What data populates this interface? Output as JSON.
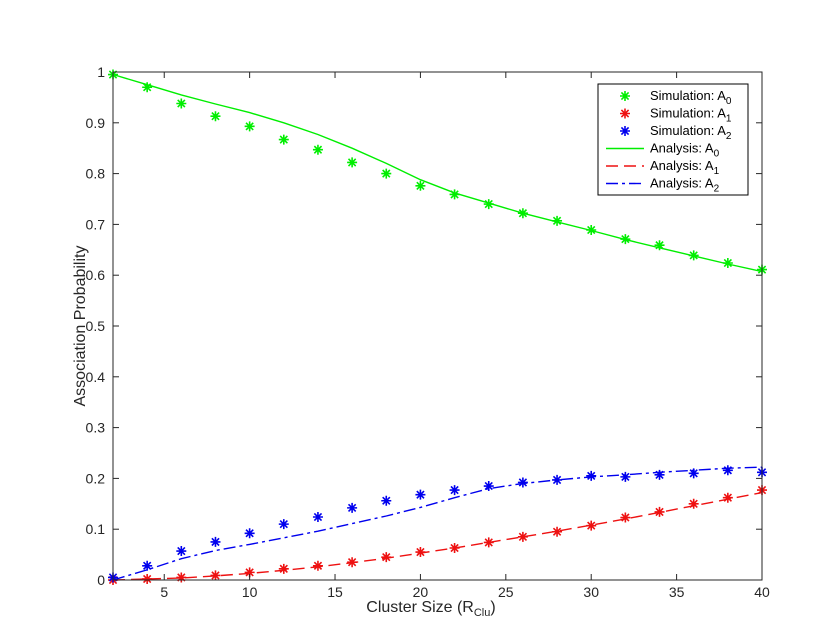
{
  "chart_data": {
    "type": "line",
    "xlabel": "Cluster Size (R",
    "xlabel_sub": "Clu",
    "xlabel_end": ")",
    "ylabel": "Association Probability",
    "xlim": [
      2,
      40
    ],
    "ylim": [
      0,
      1
    ],
    "x_ticks": [
      5,
      10,
      15,
      20,
      25,
      30,
      35,
      40
    ],
    "y_ticks": [
      0,
      0.1,
      0.2,
      0.3,
      0.4,
      0.5,
      0.6,
      0.7,
      0.8,
      0.9,
      1
    ],
    "x_tick_labels": [
      "5",
      "10",
      "15",
      "20",
      "25",
      "30",
      "35",
      "40"
    ],
    "y_tick_labels": [
      "0",
      "0.1",
      "0.2",
      "0.3",
      "0.4",
      "0.5",
      "0.6",
      "0.7",
      "0.8",
      "0.9",
      "1"
    ],
    "grid": false,
    "legend_position": "top-right",
    "x": [
      2,
      4,
      6,
      8,
      10,
      12,
      14,
      16,
      18,
      20,
      22,
      24,
      26,
      28,
      30,
      32,
      34,
      36,
      38,
      40
    ],
    "series": [
      {
        "name": "Simulation: A",
        "sub": "0",
        "kind": "markers",
        "color": "#00ee00",
        "values": [
          0.995,
          0.97,
          0.938,
          0.913,
          0.893,
          0.867,
          0.847,
          0.822,
          0.8,
          0.776,
          0.759,
          0.74,
          0.722,
          0.707,
          0.689,
          0.671,
          0.659,
          0.639,
          0.624,
          0.611
        ]
      },
      {
        "name": "Simulation: A",
        "sub": "1",
        "kind": "markers",
        "color": "#ee1111",
        "values": [
          0.0,
          0.002,
          0.005,
          0.009,
          0.015,
          0.022,
          0.028,
          0.035,
          0.045,
          0.055,
          0.063,
          0.074,
          0.085,
          0.095,
          0.107,
          0.123,
          0.134,
          0.15,
          0.162,
          0.177
        ]
      },
      {
        "name": "Simulation: A",
        "sub": "2",
        "kind": "markers",
        "color": "#0000ee",
        "values": [
          0.005,
          0.028,
          0.057,
          0.075,
          0.092,
          0.11,
          0.124,
          0.142,
          0.156,
          0.168,
          0.177,
          0.185,
          0.192,
          0.197,
          0.205,
          0.203,
          0.207,
          0.21,
          0.216,
          0.212
        ]
      },
      {
        "name": "Analysis: A",
        "sub": "0",
        "kind": "line",
        "dash": "solid",
        "color": "#00ee00",
        "values": [
          0.995,
          0.975,
          0.955,
          0.937,
          0.92,
          0.9,
          0.877,
          0.85,
          0.82,
          0.788,
          0.762,
          0.742,
          0.722,
          0.705,
          0.688,
          0.67,
          0.654,
          0.638,
          0.622,
          0.607
        ]
      },
      {
        "name": "Analysis: A",
        "sub": "1",
        "kind": "line",
        "dash": "dashed",
        "color": "#ee1111",
        "values": [
          0.0,
          0.002,
          0.004,
          0.008,
          0.013,
          0.019,
          0.026,
          0.034,
          0.043,
          0.053,
          0.063,
          0.074,
          0.085,
          0.096,
          0.108,
          0.12,
          0.133,
          0.146,
          0.159,
          0.172
        ]
      },
      {
        "name": "Analysis: A",
        "sub": "2",
        "kind": "line",
        "dash": "dashdot",
        "color": "#0000ee",
        "values": [
          0.0,
          0.02,
          0.042,
          0.058,
          0.07,
          0.083,
          0.096,
          0.111,
          0.126,
          0.143,
          0.162,
          0.18,
          0.19,
          0.197,
          0.203,
          0.207,
          0.212,
          0.216,
          0.22,
          0.222
        ]
      }
    ]
  }
}
